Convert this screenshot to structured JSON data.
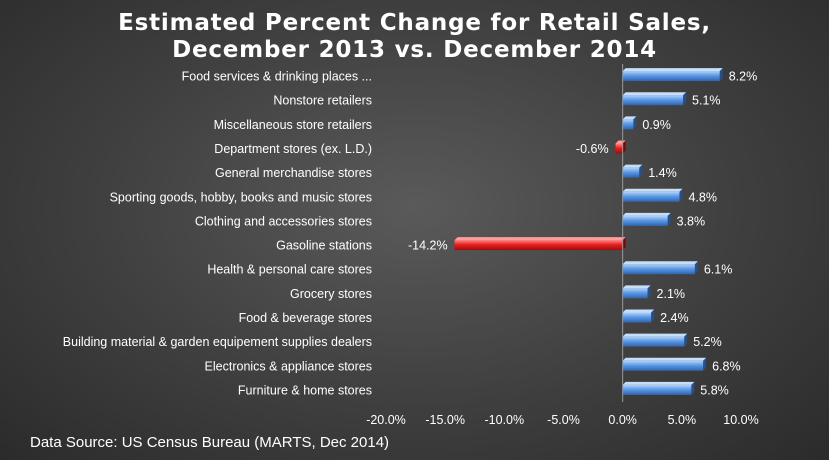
{
  "chart_data": {
    "type": "bar",
    "orientation": "horizontal",
    "title": [
      "Estimated Percent Change for Retail Sales,",
      "December 2013 vs. December 2014"
    ],
    "categories": [
      "Food services & drinking places ...",
      "Nonstore retailers",
      "Miscellaneous store retailers",
      "Department stores (ex. L.D.)",
      "General merchandise stores",
      "Sporting goods, hobby, books and music stores",
      "Clothing and accessories stores",
      "Gasoline stations",
      "Health & personal care stores",
      "Grocery stores",
      "Food & beverage stores",
      "Building material & garden equipement  supplies dealers",
      "Electronics & appliance stores",
      "Furniture & home stores"
    ],
    "values": [
      8.2,
      5.1,
      0.9,
      -0.6,
      1.4,
      4.8,
      3.8,
      -14.2,
      6.1,
      2.1,
      2.4,
      5.2,
      6.8,
      5.8
    ],
    "data_labels": [
      "8.2%",
      "5.1%",
      "0.9%",
      "-0.6%",
      "1.4%",
      "4.8%",
      "3.8%",
      "-14.2%",
      "6.1%",
      "2.1%",
      "2.4%",
      "5.2%",
      "6.8%",
      "5.8%"
    ],
    "xlim": [
      -20,
      10
    ],
    "x_ticks": [
      -20,
      -15,
      -10,
      -5,
      0,
      5,
      10
    ],
    "x_tick_labels": [
      "-20.0%",
      "-15.0%",
      "-10.0%",
      "-5.0%",
      "0.0%",
      "5.0%",
      "10.0%"
    ],
    "xlabel": "",
    "ylabel": "",
    "grid": false,
    "legend": "none",
    "colors": {
      "positive": "#4f8fe0",
      "negative": "#e01818"
    }
  },
  "source_note": "Data Source: US Census Bureau (MARTS, Dec 2014)"
}
